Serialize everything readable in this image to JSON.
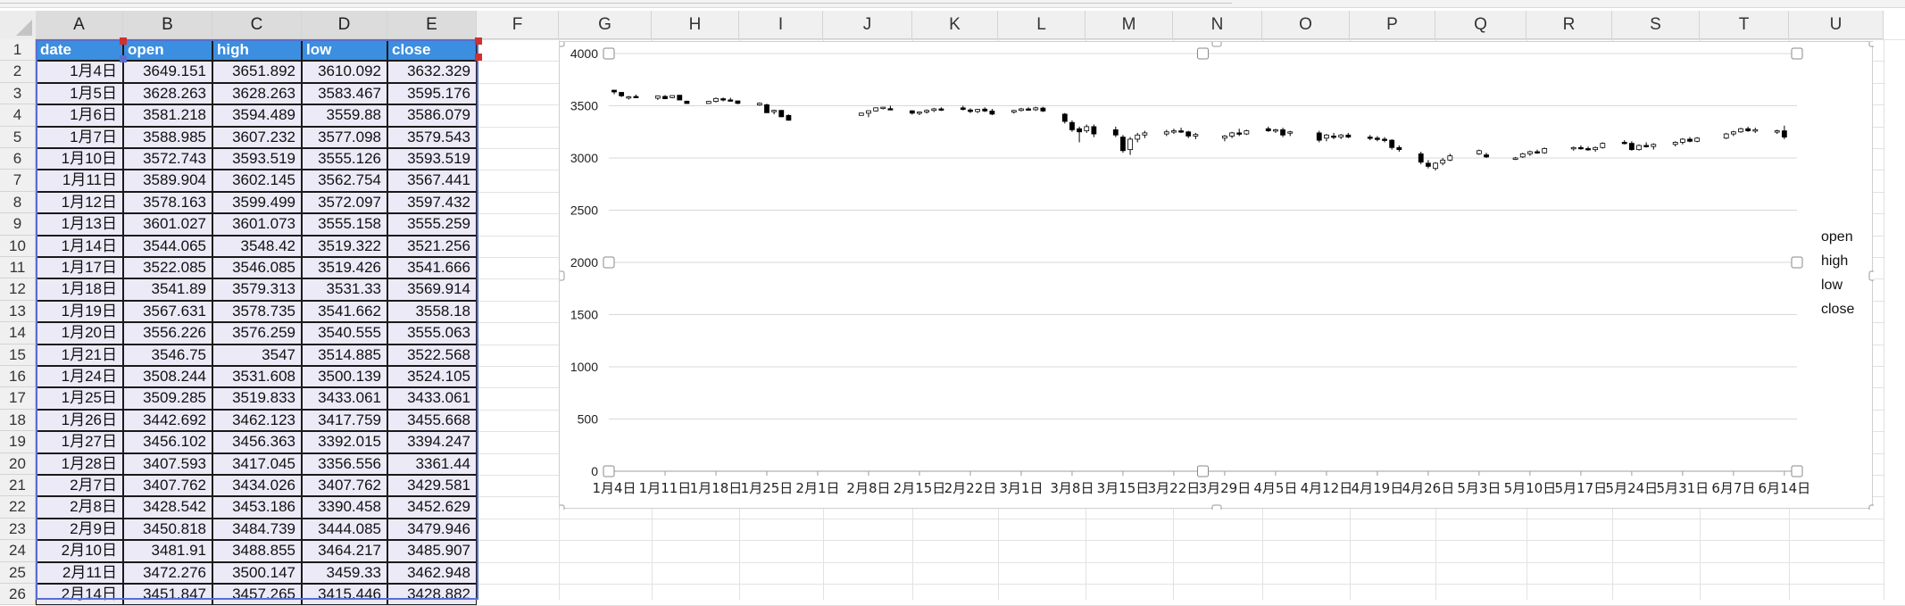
{
  "columns": [
    "A",
    "B",
    "C",
    "D",
    "E",
    "F",
    "G",
    "H",
    "I",
    "J",
    "K",
    "L",
    "M",
    "N",
    "O",
    "P",
    "Q",
    "R",
    "S",
    "T",
    "U"
  ],
  "row_numbers": [
    1,
    2,
    3,
    4,
    5,
    6,
    7,
    8,
    9,
    10,
    11,
    12,
    13,
    14,
    15,
    16,
    17,
    18,
    19,
    20,
    21,
    22,
    23,
    24,
    25,
    26
  ],
  "table": {
    "headers": [
      "date",
      "open",
      "high",
      "low",
      "close"
    ],
    "rows": [
      [
        "1月4日",
        "3649.151",
        "3651.892",
        "3610.092",
        "3632.329"
      ],
      [
        "1月5日",
        "3628.263",
        "3628.263",
        "3583.467",
        "3595.176"
      ],
      [
        "1月6日",
        "3581.218",
        "3594.489",
        "3559.88",
        "3586.079"
      ],
      [
        "1月7日",
        "3588.985",
        "3607.232",
        "3577.098",
        "3579.543"
      ],
      [
        "1月10日",
        "3572.743",
        "3593.519",
        "3555.126",
        "3593.519"
      ],
      [
        "1月11日",
        "3589.904",
        "3602.145",
        "3562.754",
        "3567.441"
      ],
      [
        "1月12日",
        "3578.163",
        "3599.499",
        "3572.097",
        "3597.432"
      ],
      [
        "1月13日",
        "3601.027",
        "3601.073",
        "3555.158",
        "3555.259"
      ],
      [
        "1月14日",
        "3544.065",
        "3548.42",
        "3519.322",
        "3521.256"
      ],
      [
        "1月17日",
        "3522.085",
        "3546.085",
        "3519.426",
        "3541.666"
      ],
      [
        "1月18日",
        "3541.89",
        "3579.313",
        "3531.33",
        "3569.914"
      ],
      [
        "1月19日",
        "3567.631",
        "3578.735",
        "3541.662",
        "3558.18"
      ],
      [
        "1月20日",
        "3556.226",
        "3576.259",
        "3540.555",
        "3555.063"
      ],
      [
        "1月21日",
        "3546.75",
        "3547",
        "3514.885",
        "3522.568"
      ],
      [
        "1月24日",
        "3508.244",
        "3531.608",
        "3500.139",
        "3524.105"
      ],
      [
        "1月25日",
        "3509.285",
        "3519.833",
        "3433.061",
        "3433.061"
      ],
      [
        "1月26日",
        "3442.692",
        "3462.123",
        "3417.759",
        "3455.668"
      ],
      [
        "1月27日",
        "3456.102",
        "3456.363",
        "3392.015",
        "3394.247"
      ],
      [
        "1月28日",
        "3407.593",
        "3417.045",
        "3356.556",
        "3361.44"
      ],
      [
        "2月7日",
        "3407.762",
        "3434.026",
        "3407.762",
        "3429.581"
      ],
      [
        "2月8日",
        "3428.542",
        "3453.186",
        "3390.458",
        "3452.629"
      ],
      [
        "2月9日",
        "3450.818",
        "3484.739",
        "3444.085",
        "3479.946"
      ],
      [
        "2月10日",
        "3481.91",
        "3488.855",
        "3464.217",
        "3485.907"
      ],
      [
        "2月11日",
        "3472.276",
        "3500.147",
        "3459.33",
        "3462.948"
      ],
      [
        "2月14日",
        "3451.847",
        "3457.265",
        "3415.446",
        "3428.882"
      ]
    ]
  },
  "chart_data": {
    "type": "candlestick",
    "ylim": [
      0,
      4000
    ],
    "y_ticks": [
      "4000",
      "3500",
      "3000",
      "2500",
      "2000",
      "1500",
      "1000",
      "500",
      "0"
    ],
    "x_tick_labels": [
      "1月4日",
      "1月11日",
      "1月18日",
      "1月25日",
      "2月1日",
      "2月8日",
      "2月15日",
      "2月22日",
      "3月1日",
      "3月8日",
      "3月15日",
      "3月22日",
      "3月29日",
      "4月5日",
      "4月12日",
      "4月19日",
      "4月26日",
      "5月3日",
      "5月10日",
      "5月17日",
      "5月24日",
      "5月31日",
      "6月7日",
      "6月14日"
    ],
    "legend": [
      "open",
      "high",
      "low",
      "close"
    ],
    "candles": [
      {
        "day": 0,
        "o": 3649.151,
        "h": 3651.892,
        "l": 3610.092,
        "c": 3632.329
      },
      {
        "day": 1,
        "o": 3628.263,
        "h": 3628.263,
        "l": 3583.467,
        "c": 3595.176
      },
      {
        "day": 2,
        "o": 3581.218,
        "h": 3594.489,
        "l": 3559.88,
        "c": 3586.079
      },
      {
        "day": 3,
        "o": 3588.985,
        "h": 3607.232,
        "l": 3577.098,
        "c": 3579.543
      },
      {
        "day": 6,
        "o": 3572.743,
        "h": 3593.519,
        "l": 3555.126,
        "c": 3593.519
      },
      {
        "day": 7,
        "o": 3589.904,
        "h": 3602.145,
        "l": 3562.754,
        "c": 3567.441
      },
      {
        "day": 8,
        "o": 3578.163,
        "h": 3599.499,
        "l": 3572.097,
        "c": 3597.432
      },
      {
        "day": 9,
        "o": 3601.027,
        "h": 3601.073,
        "l": 3555.158,
        "c": 3555.259
      },
      {
        "day": 10,
        "o": 3544.065,
        "h": 3548.42,
        "l": 3519.322,
        "c": 3521.256
      },
      {
        "day": 13,
        "o": 3522.085,
        "h": 3546.085,
        "l": 3519.426,
        "c": 3541.666
      },
      {
        "day": 14,
        "o": 3541.89,
        "h": 3579.313,
        "l": 3531.33,
        "c": 3569.914
      },
      {
        "day": 15,
        "o": 3567.631,
        "h": 3578.735,
        "l": 3541.662,
        "c": 3558.18
      },
      {
        "day": 16,
        "o": 3556.226,
        "h": 3576.259,
        "l": 3540.555,
        "c": 3555.063
      },
      {
        "day": 17,
        "o": 3546.75,
        "h": 3547,
        "l": 3514.885,
        "c": 3522.568
      },
      {
        "day": 20,
        "o": 3508.244,
        "h": 3531.608,
        "l": 3500.139,
        "c": 3524.105
      },
      {
        "day": 21,
        "o": 3509.285,
        "h": 3519.833,
        "l": 3433.061,
        "c": 3433.061
      },
      {
        "day": 22,
        "o": 3442.692,
        "h": 3462.123,
        "l": 3417.759,
        "c": 3455.668
      },
      {
        "day": 23,
        "o": 3456.102,
        "h": 3456.363,
        "l": 3392.015,
        "c": 3394.247
      },
      {
        "day": 24,
        "o": 3407.593,
        "h": 3417.045,
        "l": 3356.556,
        "c": 3361.44
      },
      {
        "day": 34,
        "o": 3407.762,
        "h": 3434.026,
        "l": 3407.762,
        "c": 3429.581
      },
      {
        "day": 35,
        "o": 3428.542,
        "h": 3453.186,
        "l": 3390.458,
        "c": 3452.629
      },
      {
        "day": 36,
        "o": 3450.818,
        "h": 3484.739,
        "l": 3444.085,
        "c": 3479.946
      },
      {
        "day": 37,
        "o": 3481.91,
        "h": 3488.855,
        "l": 3464.217,
        "c": 3485.907
      },
      {
        "day": 38,
        "o": 3472.276,
        "h": 3500.147,
        "l": 3459.33,
        "c": 3462.948
      },
      {
        "day": 41,
        "o": 3451.847,
        "h": 3457.265,
        "l": 3415.446,
        "c": 3428.882
      },
      {
        "day": 42,
        "o": 3430,
        "h": 3445,
        "l": 3410,
        "c": 3440
      },
      {
        "day": 43,
        "o": 3440,
        "h": 3465,
        "l": 3425,
        "c": 3455
      },
      {
        "day": 44,
        "o": 3455,
        "h": 3480,
        "l": 3440,
        "c": 3470
      },
      {
        "day": 45,
        "o": 3470,
        "h": 3485,
        "l": 3450,
        "c": 3460
      },
      {
        "day": 48,
        "o": 3480,
        "h": 3500,
        "l": 3455,
        "c": 3465
      },
      {
        "day": 49,
        "o": 3460,
        "h": 3475,
        "l": 3430,
        "c": 3445
      },
      {
        "day": 50,
        "o": 3445,
        "h": 3470,
        "l": 3430,
        "c": 3465
      },
      {
        "day": 51,
        "o": 3468,
        "h": 3485,
        "l": 3440,
        "c": 3450
      },
      {
        "day": 52,
        "o": 3450,
        "h": 3470,
        "l": 3410,
        "c": 3420
      },
      {
        "day": 55,
        "o": 3440,
        "h": 3460,
        "l": 3425,
        "c": 3455
      },
      {
        "day": 56,
        "o": 3455,
        "h": 3480,
        "l": 3445,
        "c": 3470
      },
      {
        "day": 57,
        "o": 3470,
        "h": 3485,
        "l": 3455,
        "c": 3460
      },
      {
        "day": 58,
        "o": 3462,
        "h": 3490,
        "l": 3450,
        "c": 3480
      },
      {
        "day": 59,
        "o": 3478,
        "h": 3490,
        "l": 3440,
        "c": 3450
      },
      {
        "day": 62,
        "o": 3420,
        "h": 3430,
        "l": 3330,
        "c": 3350
      },
      {
        "day": 63,
        "o": 3340,
        "h": 3360,
        "l": 3250,
        "c": 3270
      },
      {
        "day": 64,
        "o": 3280,
        "h": 3300,
        "l": 3150,
        "c": 3250
      },
      {
        "day": 65,
        "o": 3260,
        "h": 3320,
        "l": 3240,
        "c": 3300
      },
      {
        "day": 66,
        "o": 3300,
        "h": 3320,
        "l": 3200,
        "c": 3230
      },
      {
        "day": 69,
        "o": 3270,
        "h": 3300,
        "l": 3200,
        "c": 3220
      },
      {
        "day": 70,
        "o": 3200,
        "h": 3220,
        "l": 3050,
        "c": 3070
      },
      {
        "day": 71,
        "o": 3080,
        "h": 3200,
        "l": 3030,
        "c": 3180
      },
      {
        "day": 72,
        "o": 3180,
        "h": 3240,
        "l": 3150,
        "c": 3220
      },
      {
        "day": 73,
        "o": 3220,
        "h": 3260,
        "l": 3190,
        "c": 3240
      },
      {
        "day": 76,
        "o": 3230,
        "h": 3270,
        "l": 3210,
        "c": 3250
      },
      {
        "day": 77,
        "o": 3250,
        "h": 3280,
        "l": 3230,
        "c": 3260
      },
      {
        "day": 78,
        "o": 3260,
        "h": 3290,
        "l": 3240,
        "c": 3250
      },
      {
        "day": 79,
        "o": 3250,
        "h": 3260,
        "l": 3190,
        "c": 3210
      },
      {
        "day": 80,
        "o": 3210,
        "h": 3240,
        "l": 3180,
        "c": 3225
      },
      {
        "day": 84,
        "o": 3190,
        "h": 3220,
        "l": 3160,
        "c": 3210
      },
      {
        "day": 85,
        "o": 3210,
        "h": 3250,
        "l": 3190,
        "c": 3240
      },
      {
        "day": 86,
        "o": 3240,
        "h": 3280,
        "l": 3210,
        "c": 3230
      },
      {
        "day": 87,
        "o": 3230,
        "h": 3270,
        "l": 3220,
        "c": 3260
      },
      {
        "day": 90,
        "o": 3280,
        "h": 3300,
        "l": 3250,
        "c": 3260
      },
      {
        "day": 91,
        "o": 3260,
        "h": 3280,
        "l": 3240,
        "c": 3270
      },
      {
        "day": 92,
        "o": 3270,
        "h": 3290,
        "l": 3200,
        "c": 3220
      },
      {
        "day": 93,
        "o": 3240,
        "h": 3260,
        "l": 3210,
        "c": 3250
      },
      {
        "day": 97,
        "o": 3240,
        "h": 3260,
        "l": 3150,
        "c": 3170
      },
      {
        "day": 98,
        "o": 3190,
        "h": 3230,
        "l": 3160,
        "c": 3220
      },
      {
        "day": 99,
        "o": 3210,
        "h": 3240,
        "l": 3180,
        "c": 3200
      },
      {
        "day": 100,
        "o": 3200,
        "h": 3230,
        "l": 3180,
        "c": 3220
      },
      {
        "day": 101,
        "o": 3220,
        "h": 3240,
        "l": 3190,
        "c": 3200
      },
      {
        "day": 104,
        "o": 3200,
        "h": 3220,
        "l": 3170,
        "c": 3190
      },
      {
        "day": 105,
        "o": 3190,
        "h": 3210,
        "l": 3160,
        "c": 3180
      },
      {
        "day": 106,
        "o": 3180,
        "h": 3200,
        "l": 3150,
        "c": 3170
      },
      {
        "day": 107,
        "o": 3170,
        "h": 3180,
        "l": 3080,
        "c": 3100
      },
      {
        "day": 108,
        "o": 3100,
        "h": 3120,
        "l": 3060,
        "c": 3080
      },
      {
        "day": 111,
        "o": 3040,
        "h": 3060,
        "l": 2940,
        "c": 2960
      },
      {
        "day": 112,
        "o": 2950,
        "h": 2980,
        "l": 2900,
        "c": 2920
      },
      {
        "day": 113,
        "o": 2900,
        "h": 2960,
        "l": 2880,
        "c": 2950
      },
      {
        "day": 114,
        "o": 2950,
        "h": 3000,
        "l": 2930,
        "c": 2980
      },
      {
        "day": 115,
        "o": 2980,
        "h": 3040,
        "l": 2970,
        "c": 3020
      },
      {
        "day": 119,
        "o": 3040,
        "h": 3080,
        "l": 3030,
        "c": 3070
      },
      {
        "day": 120,
        "o": 3030,
        "h": 3050,
        "l": 3000,
        "c": 3010
      },
      {
        "day": 124,
        "o": 2990,
        "h": 3010,
        "l": 2980,
        "c": 3000
      },
      {
        "day": 125,
        "o": 3010,
        "h": 3050,
        "l": 3000,
        "c": 3040
      },
      {
        "day": 126,
        "o": 3040,
        "h": 3070,
        "l": 3020,
        "c": 3060
      },
      {
        "day": 127,
        "o": 3060,
        "h": 3080,
        "l": 3040,
        "c": 3050
      },
      {
        "day": 128,
        "o": 3050,
        "h": 3100,
        "l": 3040,
        "c": 3090
      },
      {
        "day": 132,
        "o": 3090,
        "h": 3110,
        "l": 3070,
        "c": 3100
      },
      {
        "day": 133,
        "o": 3100,
        "h": 3120,
        "l": 3080,
        "c": 3090
      },
      {
        "day": 134,
        "o": 3090,
        "h": 3110,
        "l": 3070,
        "c": 3080
      },
      {
        "day": 135,
        "o": 3080,
        "h": 3110,
        "l": 3060,
        "c": 3100
      },
      {
        "day": 136,
        "o": 3100,
        "h": 3150,
        "l": 3090,
        "c": 3140
      },
      {
        "day": 139,
        "o": 3150,
        "h": 3170,
        "l": 3130,
        "c": 3140
      },
      {
        "day": 140,
        "o": 3140,
        "h": 3160,
        "l": 3070,
        "c": 3080
      },
      {
        "day": 141,
        "o": 3080,
        "h": 3130,
        "l": 3070,
        "c": 3120
      },
      {
        "day": 142,
        "o": 3120,
        "h": 3150,
        "l": 3100,
        "c": 3110
      },
      {
        "day": 143,
        "o": 3110,
        "h": 3140,
        "l": 3080,
        "c": 3130
      },
      {
        "day": 146,
        "o": 3130,
        "h": 3160,
        "l": 3110,
        "c": 3150
      },
      {
        "day": 147,
        "o": 3150,
        "h": 3190,
        "l": 3130,
        "c": 3180
      },
      {
        "day": 148,
        "o": 3180,
        "h": 3200,
        "l": 3150,
        "c": 3160
      },
      {
        "day": 149,
        "o": 3160,
        "h": 3200,
        "l": 3150,
        "c": 3190
      },
      {
        "day": 153,
        "o": 3190,
        "h": 3240,
        "l": 3180,
        "c": 3230
      },
      {
        "day": 154,
        "o": 3230,
        "h": 3260,
        "l": 3210,
        "c": 3250
      },
      {
        "day": 155,
        "o": 3250,
        "h": 3290,
        "l": 3240,
        "c": 3280
      },
      {
        "day": 156,
        "o": 3280,
        "h": 3300,
        "l": 3250,
        "c": 3260
      },
      {
        "day": 157,
        "o": 3260,
        "h": 3290,
        "l": 3240,
        "c": 3270
      },
      {
        "day": 160,
        "o": 3250,
        "h": 3270,
        "l": 3230,
        "c": 3260
      },
      {
        "day": 161,
        "o": 3260,
        "h": 3310,
        "l": 3180,
        "c": 3200
      }
    ]
  },
  "colors": {
    "header_fill": "#3b8ee0",
    "cell_fill": "#edeaf8",
    "selection": "#5a6ed0",
    "handle_red": "#d03030"
  }
}
